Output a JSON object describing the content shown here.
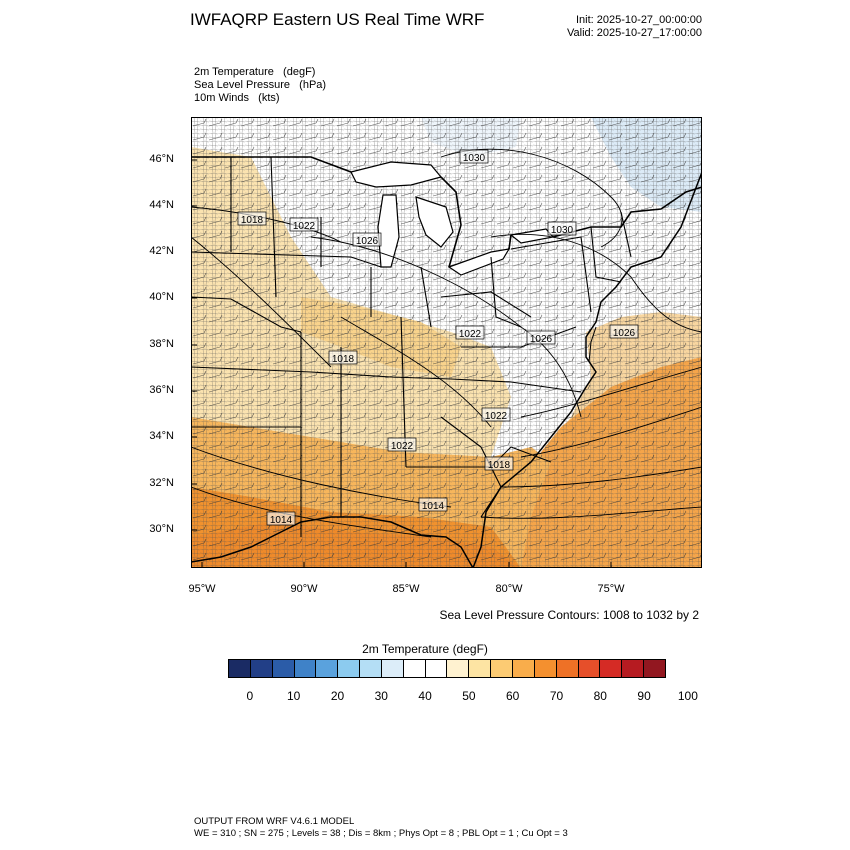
{
  "header": {
    "title": "IWFAQRP Eastern US Real Time WRF",
    "init": "Init: 2025-10-27_00:00:00",
    "valid": "Valid: 2025-10-27_17:00:00"
  },
  "fields": [
    "2m Temperature   (degF)",
    "Sea Level Pressure   (hPa)",
    "10m Winds   (kts)"
  ],
  "map": {
    "lat_labels": [
      "46°N",
      "44°N",
      "42°N",
      "40°N",
      "38°N",
      "36°N",
      "34°N",
      "32°N",
      "30°N"
    ],
    "lon_labels": [
      "95°W",
      "90°W",
      "85°W",
      "80°W",
      "75°W"
    ],
    "isobar_labels": [
      "1030",
      "1018",
      "1022",
      "1026",
      "1030",
      "1022",
      "1026",
      "1026",
      "1018",
      "1022",
      "1022",
      "1018",
      "1014",
      "1014"
    ],
    "contour_note": "Sea Level Pressure Contours: 1008 to 1032 by 2"
  },
  "colorbar": {
    "title": "2m Temperature  (degF)",
    "tick_labels": [
      "0",
      "10",
      "20",
      "30",
      "40",
      "50",
      "60",
      "70",
      "80",
      "90",
      "100"
    ],
    "colors": [
      "#1a2b64",
      "#223f87",
      "#2b5ca8",
      "#3f82c8",
      "#5aa2dd",
      "#8ccbef",
      "#b4def5",
      "#dcedf9",
      "#ffffff",
      "#ffffff",
      "#fff2d0",
      "#fde4a3",
      "#fccb73",
      "#f9ad4b",
      "#f4902f",
      "#ee7126",
      "#e64f2a",
      "#d52b25",
      "#b61b21",
      "#921720"
    ],
    "palette": {
      "ocean": "#f8d6a0",
      "land_cool": "#ffffff",
      "land_warm": "#fbe3b0",
      "land_hot": "#f7b65c",
      "land_very_hot": "#f1922e",
      "cold_blue": "#dcebf7"
    }
  },
  "footer": {
    "line1": "OUTPUT FROM WRF V4.6.1 MODEL",
    "line2": "WE = 310 ; SN = 275 ; Levels = 38 ; Dis = 8km ; Phys Opt = 8 ; PBL Opt = 1 ; Cu Opt = 3"
  }
}
